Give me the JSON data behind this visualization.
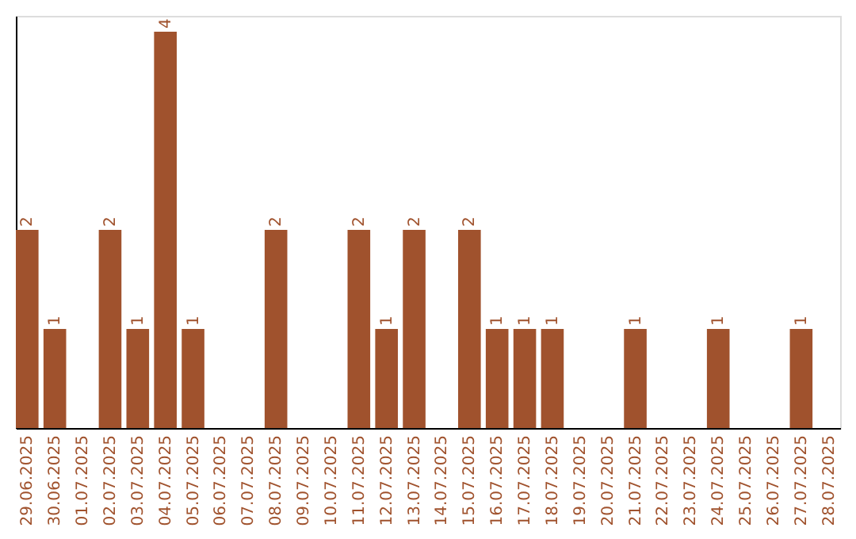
{
  "chart_data": {
    "type": "bar",
    "categories": [
      "29.06.2025",
      "30.06.2025",
      "01.07.2025",
      "02.07.2025",
      "03.07.2025",
      "04.07.2025",
      "05.07.2025",
      "06.07.2025",
      "07.07.2025",
      "08.07.2025",
      "09.07.2025",
      "10.07.2025",
      "11.07.2025",
      "12.07.2025",
      "13.07.2025",
      "14.07.2025",
      "15.07.2025",
      "16.07.2025",
      "17.07.2025",
      "18.07.2025",
      "19.07.2025",
      "20.07.2025",
      "21.07.2025",
      "22.07.2025",
      "23.07.2025",
      "24.07.2025",
      "25.07.2025",
      "26.07.2025",
      "27.07.2025",
      "28.07.2025"
    ],
    "values": [
      2,
      1,
      0,
      2,
      1,
      4,
      1,
      0,
      0,
      2,
      0,
      0,
      2,
      1,
      2,
      0,
      2,
      1,
      1,
      1,
      0,
      0,
      1,
      0,
      0,
      1,
      0,
      0,
      1,
      0
    ],
    "value_labels": [
      "2",
      "1",
      null,
      "2",
      "1",
      "4",
      "1",
      null,
      null,
      "2",
      null,
      null,
      "2",
      "1",
      "2",
      null,
      "2",
      "1",
      "1",
      "1",
      null,
      null,
      "1",
      null,
      null,
      "1",
      null,
      null,
      "1",
      null
    ],
    "color": "#a0522d",
    "ylim": [
      0,
      4.16
    ],
    "tick_labels": "x",
    "grid": false
  }
}
